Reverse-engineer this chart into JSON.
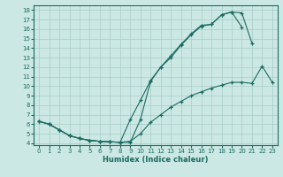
{
  "xlabel": "Humidex (Indice chaleur)",
  "bg_color": "#cce8e4",
  "line_color": "#1a6b60",
  "grid_color": "#a8ccc8",
  "xlim": [
    -0.5,
    23.5
  ],
  "ylim": [
    3.8,
    18.5
  ],
  "xticks": [
    0,
    1,
    2,
    3,
    4,
    5,
    6,
    7,
    8,
    9,
    10,
    11,
    12,
    13,
    14,
    15,
    16,
    17,
    18,
    19,
    20,
    21,
    22,
    23
  ],
  "yticks": [
    4,
    5,
    6,
    7,
    8,
    9,
    10,
    11,
    12,
    13,
    14,
    15,
    16,
    17,
    18
  ],
  "curve1_x": [
    0,
    1,
    2,
    3,
    4,
    5,
    6,
    7,
    8,
    9,
    10,
    11,
    12,
    13,
    14,
    15,
    16,
    17,
    18,
    19,
    20
  ],
  "curve1_y": [
    6.3,
    6.0,
    5.4,
    4.8,
    4.5,
    4.3,
    4.2,
    4.15,
    4.1,
    6.5,
    8.5,
    10.6,
    12.0,
    13.0,
    14.3,
    15.4,
    16.3,
    16.5,
    17.5,
    17.8,
    16.2
  ],
  "curve2_x": [
    0,
    1,
    2,
    3,
    4,
    5,
    6,
    7,
    8,
    9,
    10,
    11,
    12,
    13,
    14,
    15,
    16,
    17,
    18,
    19,
    20,
    21
  ],
  "curve2_y": [
    6.3,
    6.0,
    5.4,
    4.8,
    4.5,
    4.3,
    4.2,
    4.15,
    4.1,
    4.1,
    6.5,
    10.5,
    12.0,
    13.2,
    14.4,
    15.5,
    16.4,
    16.5,
    17.5,
    17.8,
    17.7,
    14.5
  ],
  "curve3_x": [
    0,
    1,
    2,
    3,
    4,
    5,
    6,
    7,
    8,
    9,
    10,
    11,
    12,
    13,
    14,
    15,
    16,
    17,
    18,
    19,
    20,
    21,
    22,
    23
  ],
  "curve3_y": [
    6.3,
    6.0,
    5.4,
    4.8,
    4.5,
    4.3,
    4.2,
    4.15,
    4.1,
    4.2,
    5.0,
    6.2,
    7.0,
    7.8,
    8.4,
    9.0,
    9.4,
    9.8,
    10.1,
    10.4,
    10.4,
    10.3,
    12.1,
    10.4
  ]
}
